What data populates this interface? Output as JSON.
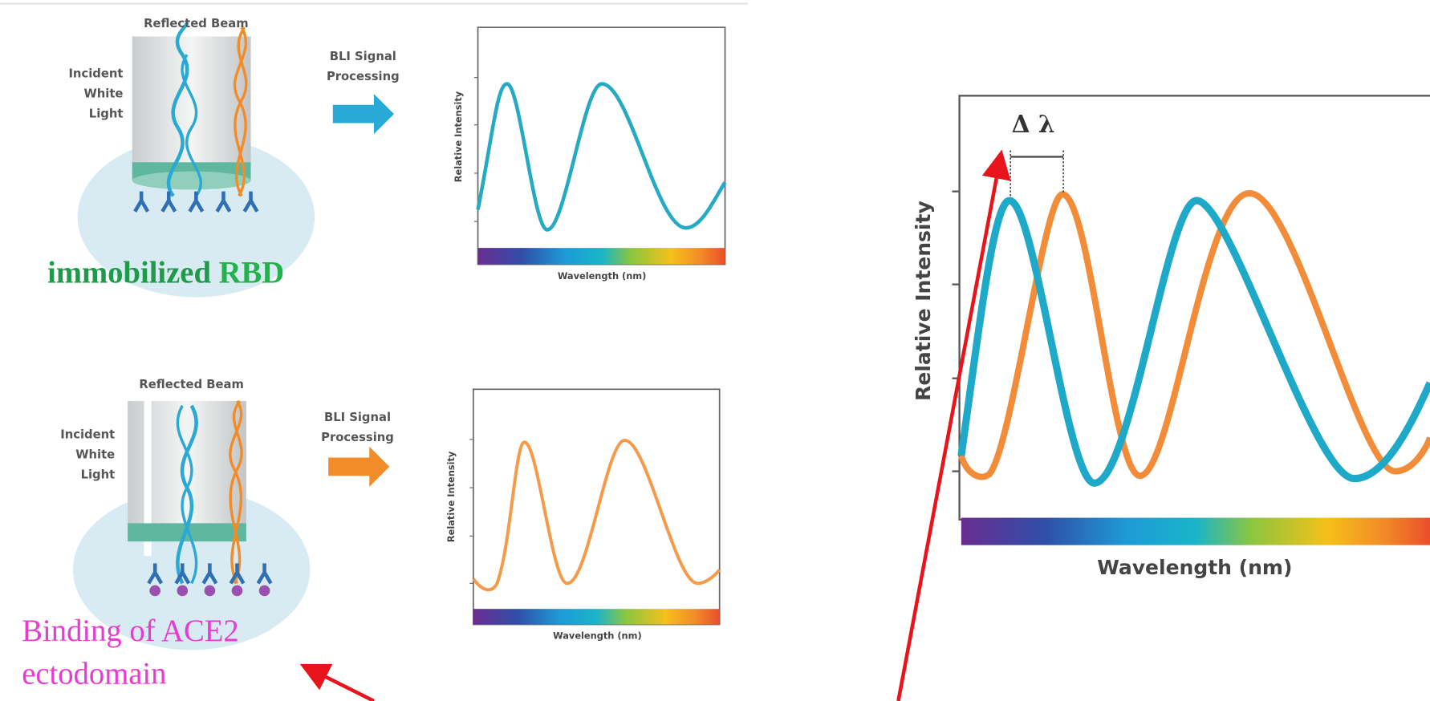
{
  "top": {
    "reflected": "Reflected Beam",
    "incident": [
      "Incident",
      "White",
      "Light"
    ],
    "processing": [
      "BLI Signal",
      "Processing"
    ],
    "y_label": "Relative Intensity",
    "x_label": "Wavelength (nm)",
    "caption": [
      "immobilized",
      "RBD"
    ]
  },
  "bottom": {
    "reflected": "Reflected Beam",
    "incident": [
      "Incident",
      "White",
      "Light"
    ],
    "processing": [
      "BLI Signal",
      "Processing"
    ],
    "y_label": "Relative Intensity",
    "x_label": "Wavelength (nm)",
    "caption": [
      "Binding of ACE2",
      "ectodomain"
    ]
  },
  "zoom": {
    "delta": "Δ λ",
    "y_label": "Relative Intensity",
    "x_label": "Wavelength (nm)"
  }
}
